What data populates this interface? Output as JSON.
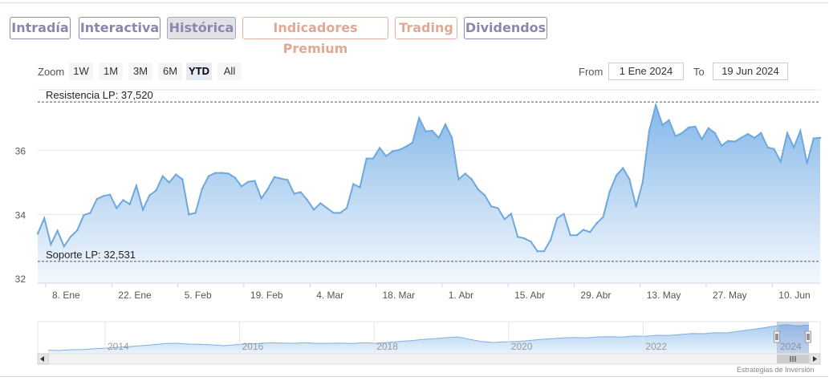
{
  "tabs": [
    {
      "label": "Intradía",
      "color": "purple"
    },
    {
      "label": "Interactiva",
      "color": "purple"
    },
    {
      "label": "Histórica",
      "color": "purple",
      "active": true
    },
    {
      "label": "Indicadores Premium",
      "color": "orange"
    },
    {
      "label": "Trading",
      "color": "orange"
    },
    {
      "label": "Dividendos",
      "color": "purple"
    }
  ],
  "range_selector": {
    "zoom_label": "Zoom",
    "buttons": [
      "1W",
      "1M",
      "3M",
      "6M",
      "YTD",
      "All"
    ],
    "selected": "YTD",
    "from_label": "From",
    "from_value": "1 Ene 2024",
    "to_label": "To",
    "to_value": "19 Jun 2024"
  },
  "credits": "Estrategias de Inversión",
  "chart_data": {
    "type": "area",
    "title": "",
    "xlabel": "",
    "ylabel": "",
    "x_tick_labels": [
      "8. Ene",
      "22. Ene",
      "5. Feb",
      "19. Feb",
      "4. Mar",
      "18. Mar",
      "1. Abr",
      "15. Abr",
      "29. Abr",
      "13. May",
      "27. May",
      "10. Jun"
    ],
    "y_tick_labels": [
      "32",
      "34",
      "36"
    ],
    "ylim": [
      31.85,
      37.9
    ],
    "grid": true,
    "series": [
      {
        "values": [
          33.4,
          33.88,
          33.06,
          33.49,
          33.0,
          33.3,
          33.5,
          33.98,
          34.05,
          34.48,
          34.58,
          34.62,
          34.2,
          34.45,
          34.32,
          34.9,
          34.15,
          34.6,
          34.75,
          35.2,
          35.0,
          35.25,
          35.1,
          34.0,
          34.05,
          34.8,
          35.2,
          35.3,
          35.3,
          35.28,
          35.15,
          34.88,
          35.02,
          35.05,
          34.5,
          34.8,
          35.17,
          35.12,
          35.08,
          34.65,
          34.7,
          34.45,
          34.15,
          34.35,
          34.2,
          34.05,
          34.05,
          34.2,
          34.95,
          34.85,
          35.75,
          35.75,
          36.08,
          35.83,
          35.98,
          36.02,
          36.12,
          36.25,
          37.02,
          36.6,
          36.62,
          36.4,
          36.82,
          36.4,
          35.1,
          35.28,
          35.1,
          34.78,
          34.6,
          34.25,
          34.2,
          33.85,
          34.02,
          33.3,
          33.25,
          33.15,
          32.85,
          32.85,
          33.2,
          33.88,
          34.02,
          33.35,
          33.35,
          33.52,
          33.45,
          33.72,
          33.92,
          34.72,
          35.22,
          35.45,
          35.1,
          34.25,
          35.0,
          36.62,
          37.42,
          36.8,
          36.95,
          36.45,
          36.55,
          36.72,
          36.75,
          36.35,
          36.7,
          36.55,
          36.15,
          36.3,
          36.28,
          36.4,
          36.52,
          36.4,
          36.55,
          36.1,
          36.05,
          35.65,
          36.55,
          36.1,
          36.62,
          35.6,
          36.38,
          36.4
        ]
      }
    ],
    "annotations": [
      {
        "label": "Resistencia LP: 37,520",
        "y": 37.52
      },
      {
        "label": "Soporte LP: 32,531",
        "y": 32.531
      }
    ],
    "navigator": {
      "x_tick_labels": [
        "2014",
        "2016",
        "2018",
        "2020",
        "2022",
        "2024"
      ],
      "values": [
        27.3,
        27.2,
        27.5,
        27.6,
        27.9,
        28.1,
        28.4,
        28.7,
        29.0,
        29.4,
        29.8,
        29.9,
        29.6,
        29.5,
        29.3,
        29.0,
        29.4,
        29.7,
        29.8,
        30.1,
        30.0,
        29.9,
        30.1,
        29.8,
        29.9,
        30.0,
        29.8,
        30.1,
        29.9,
        30.2,
        30.6,
        30.9,
        31.3,
        31.6,
        32.0,
        32.3,
        31.4,
        30.6,
        30.2,
        30.4,
        30.6,
        30.9,
        31.3,
        31.6,
        31.9,
        32.1,
        31.9,
        32.3,
        32.4,
        32.2,
        32.6,
        32.5,
        32.9,
        32.8,
        33.2,
        33.6,
        33.5,
        33.9,
        33.8,
        34.4,
        35.0,
        35.6,
        36.3,
        36.9,
        36.4,
        36.7
      ]
    }
  },
  "colors": {
    "line": "#6fa8dc",
    "area_top": "#7db3e8",
    "area_bottom": "#f3f8fd",
    "gridline": "#e6e6e6",
    "dashed_line": "#555555",
    "navigator_mask": "rgba(102,133,194,0.3)"
  }
}
